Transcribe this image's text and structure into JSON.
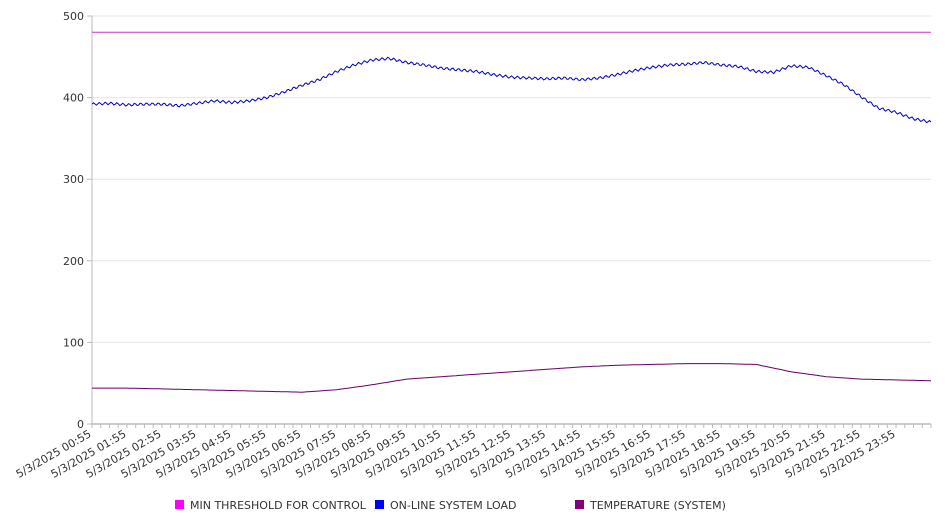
{
  "chart_data": {
    "type": "line",
    "title": "",
    "xlabel": "",
    "ylabel": "",
    "ylim": [
      0,
      500
    ],
    "y_ticks": [
      0,
      100,
      200,
      300,
      400,
      500
    ],
    "grid": "horizontal",
    "legend_position": "bottom",
    "x_categories": [
      "5/3/2025 00:55",
      "5/3/2025 01:55",
      "5/3/2025 02:55",
      "5/3/2025 03:55",
      "5/3/2025 04:55",
      "5/3/2025 05:55",
      "5/3/2025 06:55",
      "5/3/2025 07:55",
      "5/3/2025 08:55",
      "5/3/2025 09:55",
      "5/3/2025 10:55",
      "5/3/2025 11:55",
      "5/3/2025 12:55",
      "5/3/2025 13:55",
      "5/3/2025 14:55",
      "5/3/2025 15:55",
      "5/3/2025 16:55",
      "5/3/2025 17:55",
      "5/3/2025 18:55",
      "5/3/2025 19:55",
      "5/3/2025 20:55",
      "5/3/2025 21:55",
      "5/3/2025 22:55",
      "5/3/2025 23:55"
    ],
    "x_range": [
      0,
      24
    ],
    "series": [
      {
        "name": "MIN THRESHOLD FOR CONTROL",
        "color": "#cc33cc",
        "legend_color": "#ff00ff",
        "x": [
          0,
          24
        ],
        "y": [
          480,
          480
        ]
      },
      {
        "name": "ON-LINE SYSTEM LOAD",
        "color": "#0000cc",
        "legend_color": "#0000ff",
        "x": [
          0,
          0.5,
          1,
          1.5,
          2,
          2.5,
          3,
          3.5,
          4,
          4.5,
          5,
          5.5,
          6,
          6.5,
          7,
          7.5,
          8,
          8.5,
          9,
          9.5,
          10,
          10.5,
          11,
          11.5,
          12,
          12.5,
          13,
          13.5,
          14,
          14.5,
          15,
          15.5,
          16,
          16.5,
          17,
          17.5,
          18,
          18.5,
          19,
          19.5,
          20,
          20.5,
          21,
          21.5,
          22,
          22.5,
          23,
          23.5,
          24
        ],
        "y": [
          392,
          393,
          391,
          392,
          392,
          390,
          393,
          396,
          394,
          396,
          400,
          407,
          415,
          422,
          432,
          440,
          446,
          448,
          443,
          440,
          436,
          434,
          432,
          428,
          425,
          424,
          423,
          424,
          422,
          424,
          428,
          433,
          437,
          440,
          441,
          443,
          440,
          438,
          432,
          431,
          439,
          437,
          427,
          416,
          401,
          387,
          382,
          374,
          370
        ]
      },
      {
        "name": "TEMPERATURE (SYSTEM)",
        "color": "#660066",
        "legend_color": "#800080",
        "x": [
          0,
          1,
          2,
          3,
          4,
          5,
          6,
          7,
          8,
          9,
          10,
          11,
          12,
          13,
          14,
          15,
          16,
          17,
          18,
          19,
          20,
          21,
          22,
          23,
          24
        ],
        "y": [
          44,
          44,
          43,
          42,
          41,
          40,
          39,
          42,
          48,
          55,
          58,
          61,
          64,
          67,
          70,
          72,
          73,
          74,
          74,
          73,
          64,
          58,
          55,
          54,
          53
        ]
      }
    ]
  },
  "legend": {
    "items": [
      {
        "label": "MIN THRESHOLD FOR CONTROL",
        "color": "#ff00ff"
      },
      {
        "label": "ON-LINE SYSTEM LOAD",
        "color": "#0000ff"
      },
      {
        "label": "TEMPERATURE (SYSTEM)",
        "color": "#800080"
      }
    ]
  }
}
